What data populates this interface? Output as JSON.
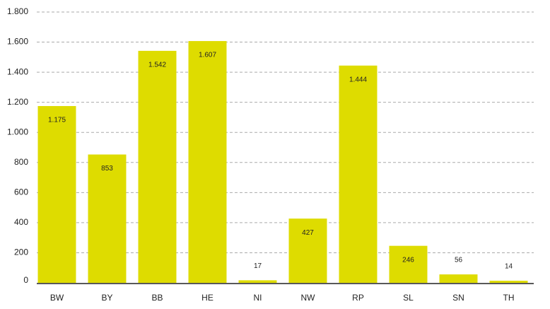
{
  "chart_data": {
    "type": "bar",
    "categories": [
      "BW",
      "BY",
      "BB",
      "HE",
      "NI",
      "NW",
      "RP",
      "SL",
      "SN",
      "TH"
    ],
    "values": [
      1175,
      853,
      1542,
      1607,
      17,
      427,
      1444,
      246,
      56,
      14
    ],
    "value_labels": [
      "1.175",
      "853",
      "1.542",
      "1.607",
      "17",
      "427",
      "1.444",
      "246",
      "56",
      "14"
    ],
    "color": "#dedc00",
    "ylim": [
      0,
      1800
    ],
    "yticks": [
      0,
      200,
      400,
      600,
      800,
      {
        "value": 1000,
        "label": "1.000"
      },
      {
        "value": 1200,
        "label": "1.200"
      },
      {
        "value": 1400,
        "label": "1.400"
      },
      {
        "value": 1600,
        "label": "1.600"
      },
      {
        "value": 1800,
        "label": "1.800"
      }
    ],
    "grid": true
  }
}
